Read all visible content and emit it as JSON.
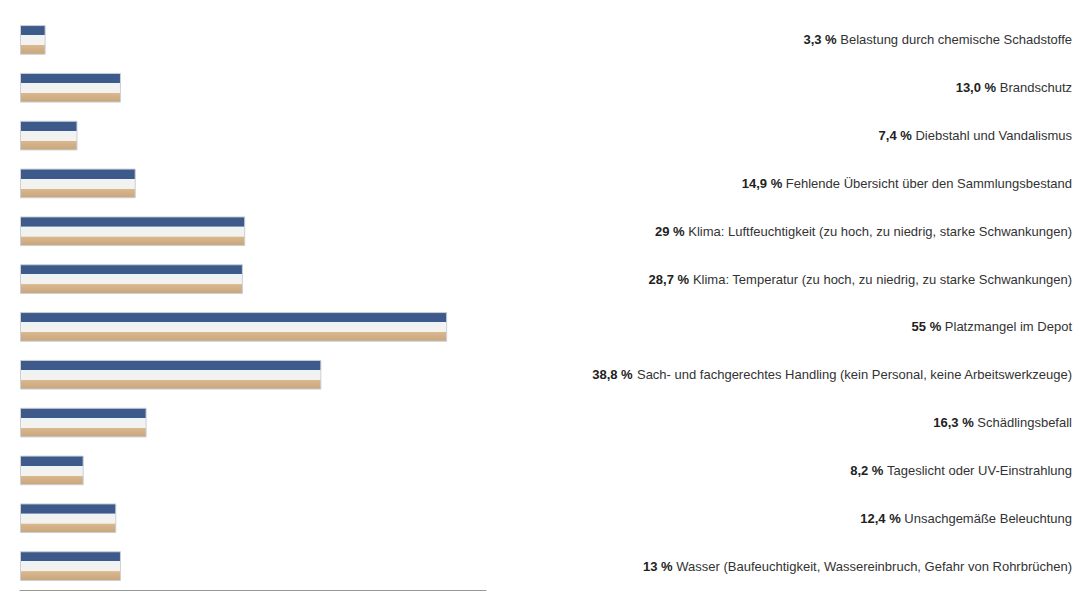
{
  "chart_data": {
    "type": "bar",
    "orientation": "horizontal",
    "categories": [
      "Wasser (Baufeuchtigkeit, Wassereinbruch, Gefahr von Rohrbrüchen)",
      "Unsachgemäße Beleuchtung",
      "Tageslicht oder UV-Einstrahlung",
      "Schädlingsbefall",
      "Sach- und fachgerechtes Handling (kein Personal, keine Arbeitswerkzeuge)",
      "Platzmangel im Depot",
      "Klima: Temperatur (zu hoch, zu niedrig, zu starke Schwankungen)",
      "Klima: Luftfeuchtigkeit (zu hoch, zu niedrig, starke Schwankungen)",
      "Fehlende Übersicht über den Sammlungsbestand",
      "Diebstahl und Vandalismus",
      "Brandschutz",
      "Belastung durch chemische Schadstoffe"
    ],
    "values": [
      13,
      12.4,
      8.2,
      16.3,
      38.8,
      55,
      28.7,
      29,
      14.9,
      7.4,
      13.0,
      3.3
    ],
    "value_labels": [
      "13 %",
      "12,4 %",
      "8,2 %",
      "16,3 %",
      "38,8 %",
      "55 %",
      "28,7 %",
      "29 %",
      "14,9 %",
      "7,4 %",
      "13,0 %",
      "3,3 %"
    ],
    "data_labels": true,
    "color": "#3d5a8a",
    "xlim": [
      0,
      60
    ],
    "tick_labels": "y",
    "grid": false
  }
}
